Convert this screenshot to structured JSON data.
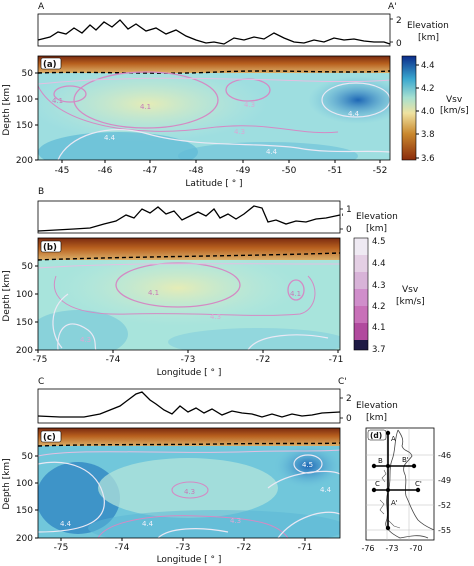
{
  "sections": [
    {
      "id": "a",
      "panel_label": "(a)",
      "start_label": "A",
      "end_label": "A'",
      "elev_label_1": "Elevation",
      "elev_label_2": "[km]",
      "elev_ticks": [
        "2",
        "0"
      ],
      "xlabel": "Latitude [ ° ]",
      "xticks": [
        "-45",
        "-46",
        "-47",
        "-48",
        "-49",
        "-50",
        "-51",
        "-52"
      ],
      "yticks": [
        "50",
        "100",
        "150",
        "200"
      ],
      "ylabel": "Depth [km]",
      "contour_labels": [
        "4.1",
        "4.1",
        "4.3",
        "4.3",
        "4.4",
        "4.4",
        "4.4"
      ]
    },
    {
      "id": "b",
      "panel_label": "(b)",
      "start_label": "B",
      "end_label": "B'",
      "elev_label_1": "Elevation",
      "elev_label_2": "[km]",
      "elev_ticks": [
        "1",
        "0"
      ],
      "xlabel": "Longitude [ ° ]",
      "xticks": [
        "-75",
        "-74",
        "-73",
        "-72",
        "-71"
      ],
      "yticks": [
        "50",
        "100",
        "150",
        "200"
      ],
      "ylabel": "Depth [km]",
      "contour_labels": [
        "4.1",
        "4.1",
        "4.3",
        "4.3"
      ]
    },
    {
      "id": "c",
      "panel_label": "(c)",
      "start_label": "C",
      "end_label": "C'",
      "elev_label_1": "Elevation",
      "elev_label_2": "[km]",
      "elev_ticks": [
        "2",
        "0"
      ],
      "xlabel": "Longitude [ ° ]",
      "xticks": [
        "-75",
        "-74",
        "-73",
        "-72",
        "-71"
      ],
      "yticks": [
        "50",
        "100",
        "150",
        "200"
      ],
      "ylabel": "Depth [km]",
      "contour_labels": [
        "4.5",
        "4.4",
        "4.4",
        "4.4",
        "4.3",
        "4.3"
      ]
    }
  ],
  "colorbar_continuous": {
    "title_1": "Vsv",
    "title_2": "[km/s]",
    "ticks": [
      "4.4",
      "4.2",
      "4.0",
      "3.8",
      "3.6"
    ]
  },
  "colorbar_discrete": {
    "title_1": "Vsv",
    "title_2": "[km/s]",
    "ticks": [
      "4.5",
      "4.4",
      "4.3",
      "4.2",
      "4.1",
      "3.7"
    ]
  },
  "map": {
    "panel_label": "(d)",
    "profile_labels": [
      "A",
      "B",
      "B'",
      "C",
      "C'",
      "A'"
    ],
    "xticks": [
      "-76",
      "-73",
      "-70"
    ],
    "yticks": [
      "-46",
      "-49",
      "-52",
      "-55"
    ]
  },
  "colors": {
    "elev_line": "#000000",
    "contour_low": "#d48ac4",
    "contour_high": "#eae8f4",
    "moho": "#000000"
  }
}
